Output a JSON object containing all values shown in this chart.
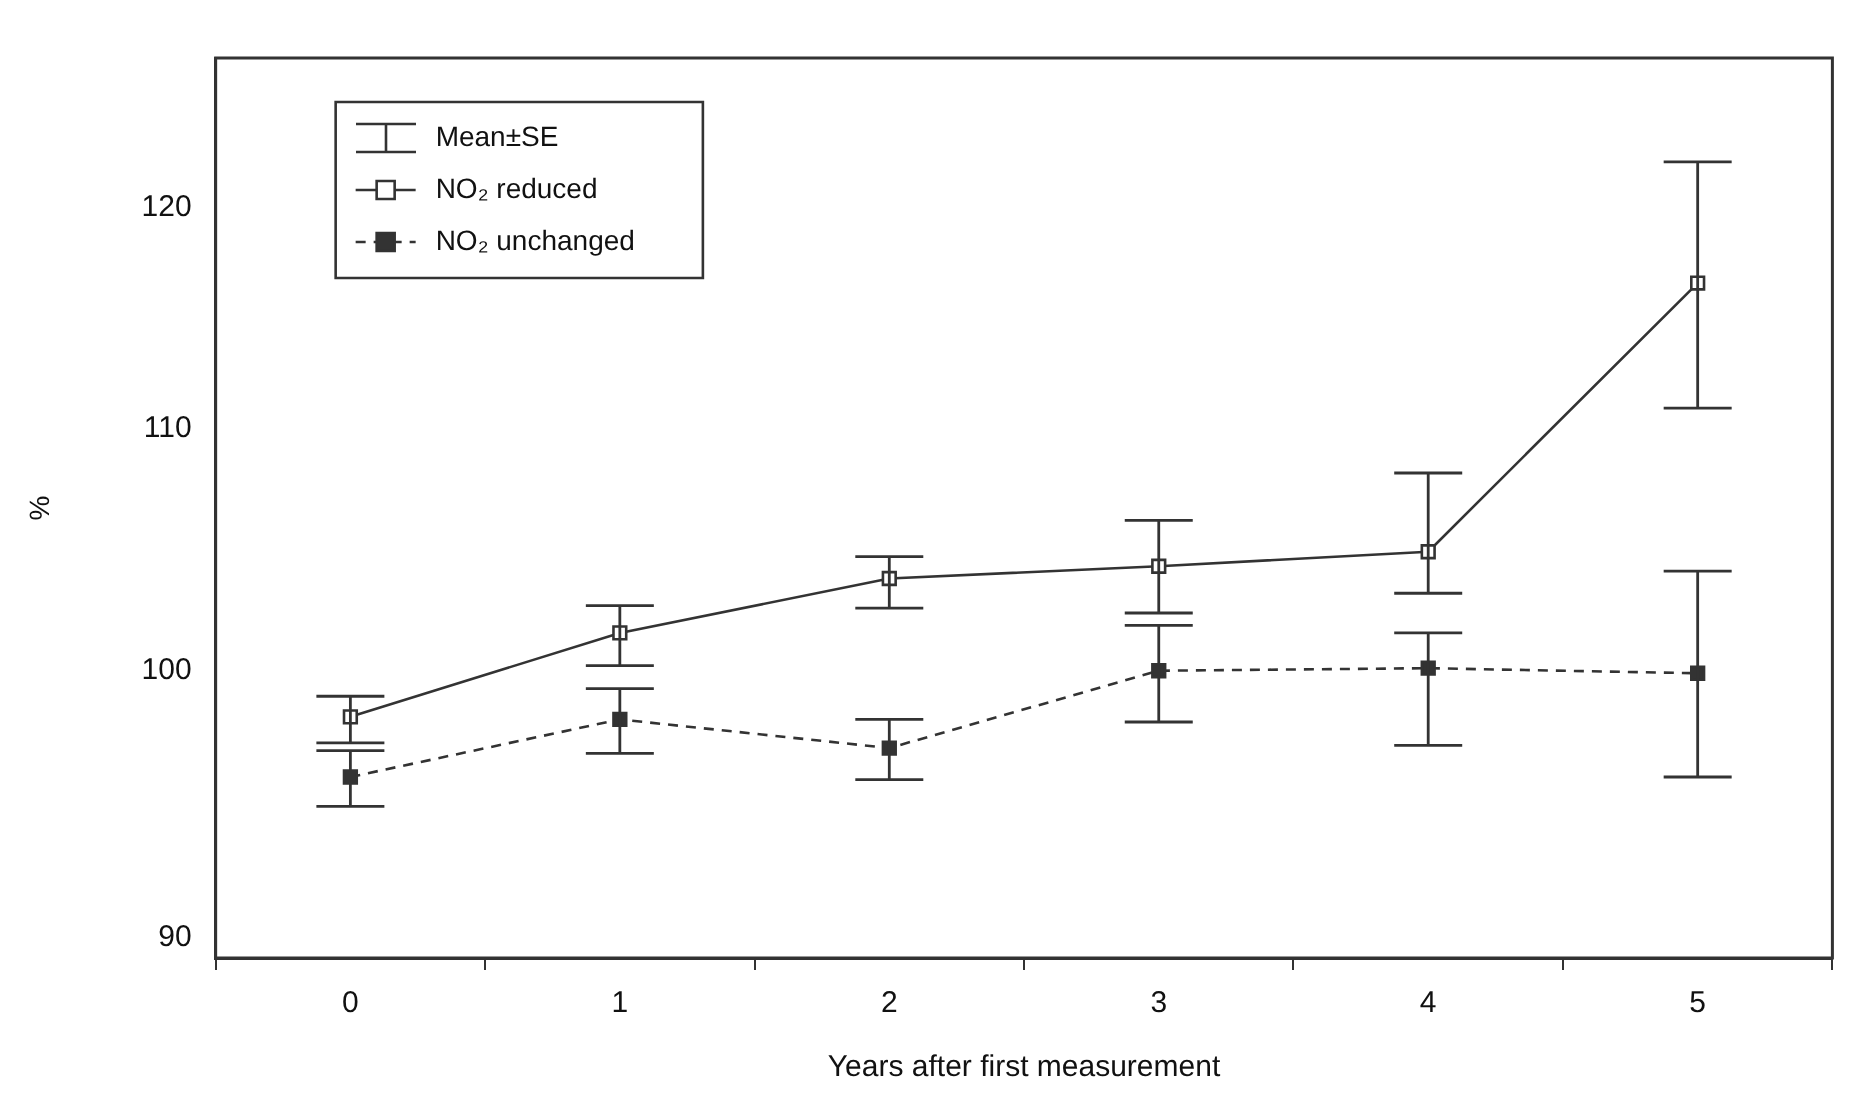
{
  "chart_data": {
    "type": "line",
    "xlabel": "Years after first measurement",
    "ylabel": "%",
    "legend_title": "Mean±SE",
    "categories": [
      "0",
      "1",
      "2",
      "3",
      "4",
      "5"
    ],
    "series": [
      {
        "name": "NO₂ reduced",
        "color": "#333333",
        "marker": "square",
        "line_style": "solid",
        "values": [
          98.2,
          101.5,
          103.7,
          104.2,
          104.8,
          116.5
        ],
        "errors": [
          [
            97.2,
            99.0
          ],
          [
            100.2,
            102.6
          ],
          [
            102.5,
            104.6
          ],
          [
            102.3,
            106.1
          ],
          [
            103.1,
            108.1
          ],
          [
            110.9,
            122.2
          ]
        ]
      },
      {
        "name": "NO₂ unchanged",
        "color": "#333333",
        "marker": "square",
        "line_style": "dashed",
        "values": [
          95.9,
          98.1,
          97.0,
          100.0,
          100.1,
          99.9
        ],
        "errors": [
          [
            94.8,
            96.9
          ],
          [
            96.8,
            99.3
          ],
          [
            95.8,
            98.1
          ],
          [
            98.0,
            101.8
          ],
          [
            97.1,
            101.5
          ],
          [
            95.9,
            104.0
          ]
        ]
      }
    ],
    "log": "y",
    "ylim": [
      89.3,
      127.3
    ],
    "yticks": [
      90,
      100,
      110,
      120
    ],
    "grid": false,
    "legend": "top left"
  }
}
